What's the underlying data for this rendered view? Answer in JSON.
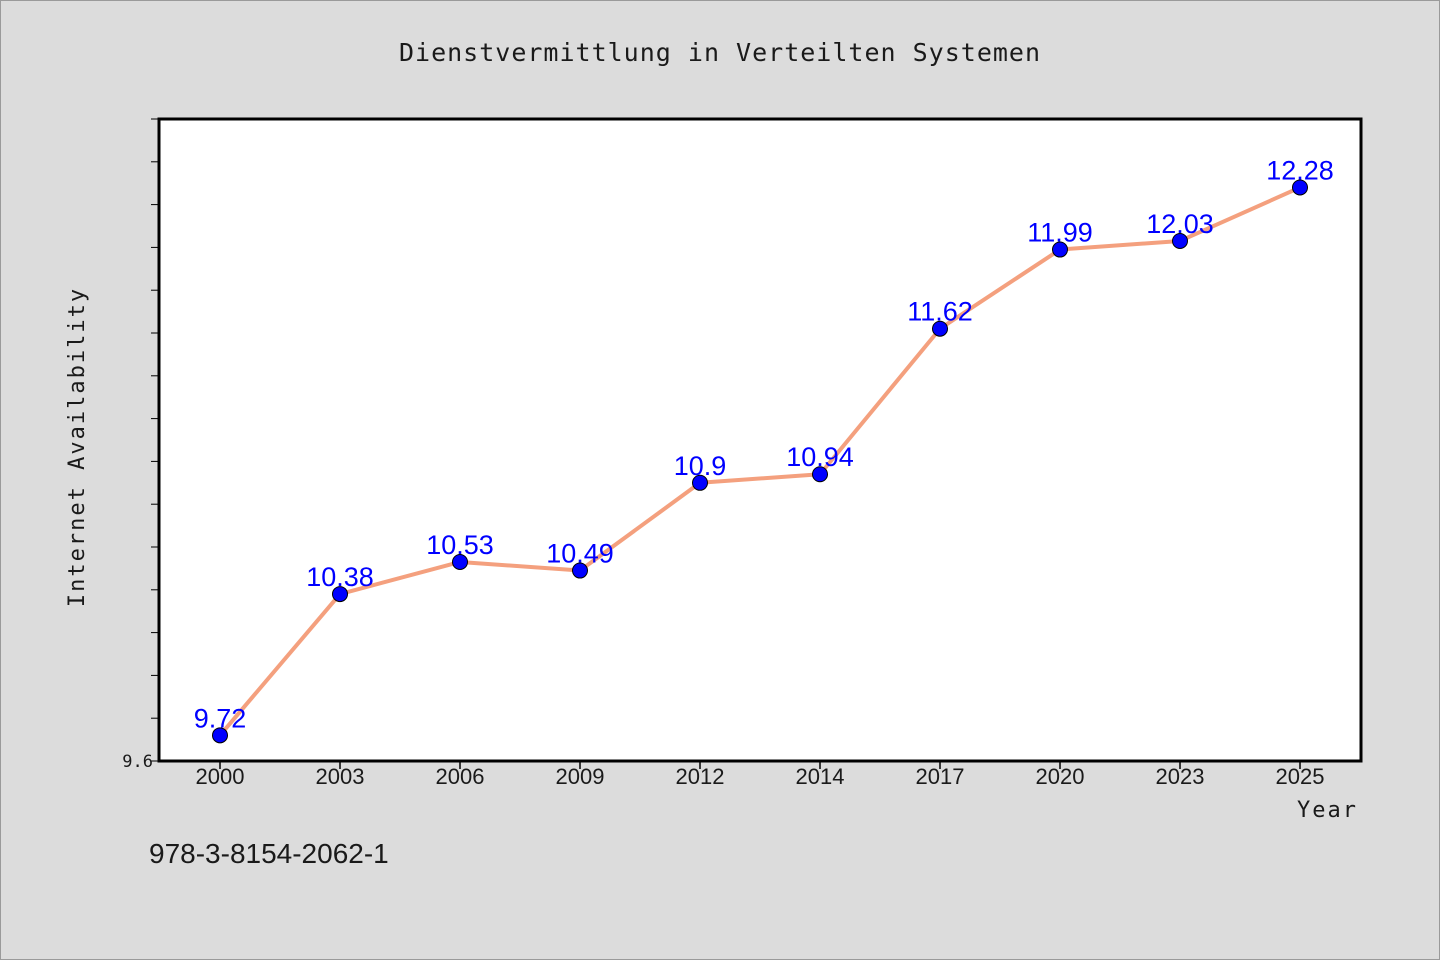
{
  "chart_data": {
    "type": "line",
    "title": "Dienstvermittlung in Verteilten Systemen",
    "xlabel": "Year",
    "ylabel": "Internet Availability",
    "categories": [
      "2000",
      "2003",
      "2006",
      "2009",
      "2012",
      "2014",
      "2017",
      "2020",
      "2023",
      "2025"
    ],
    "series": [
      {
        "values": [
          9.72,
          10.38,
          10.53,
          10.49,
          10.9,
          10.94,
          11.62,
          11.99,
          12.03,
          12.28
        ],
        "data_labels": [
          "9.72",
          "10.38",
          "10.53",
          "10.49",
          "10.9",
          "10.94",
          "11.62",
          "11.99",
          "12.03",
          "12.28"
        ],
        "line_color": "#f4a07e",
        "marker_color": "#0000ff"
      }
    ],
    "ylim": [
      9.6,
      12.6
    ],
    "y_tick_labels": [
      "9.6"
    ],
    "grid": false,
    "legend": "none"
  },
  "footer_text": "978-3-8154-2062-1",
  "colors": {
    "background": "#dcdcdc",
    "plot_background": "#ffffff",
    "line": "#f4a07e",
    "marker": "#0000ff",
    "data_label": "#0000ff"
  }
}
